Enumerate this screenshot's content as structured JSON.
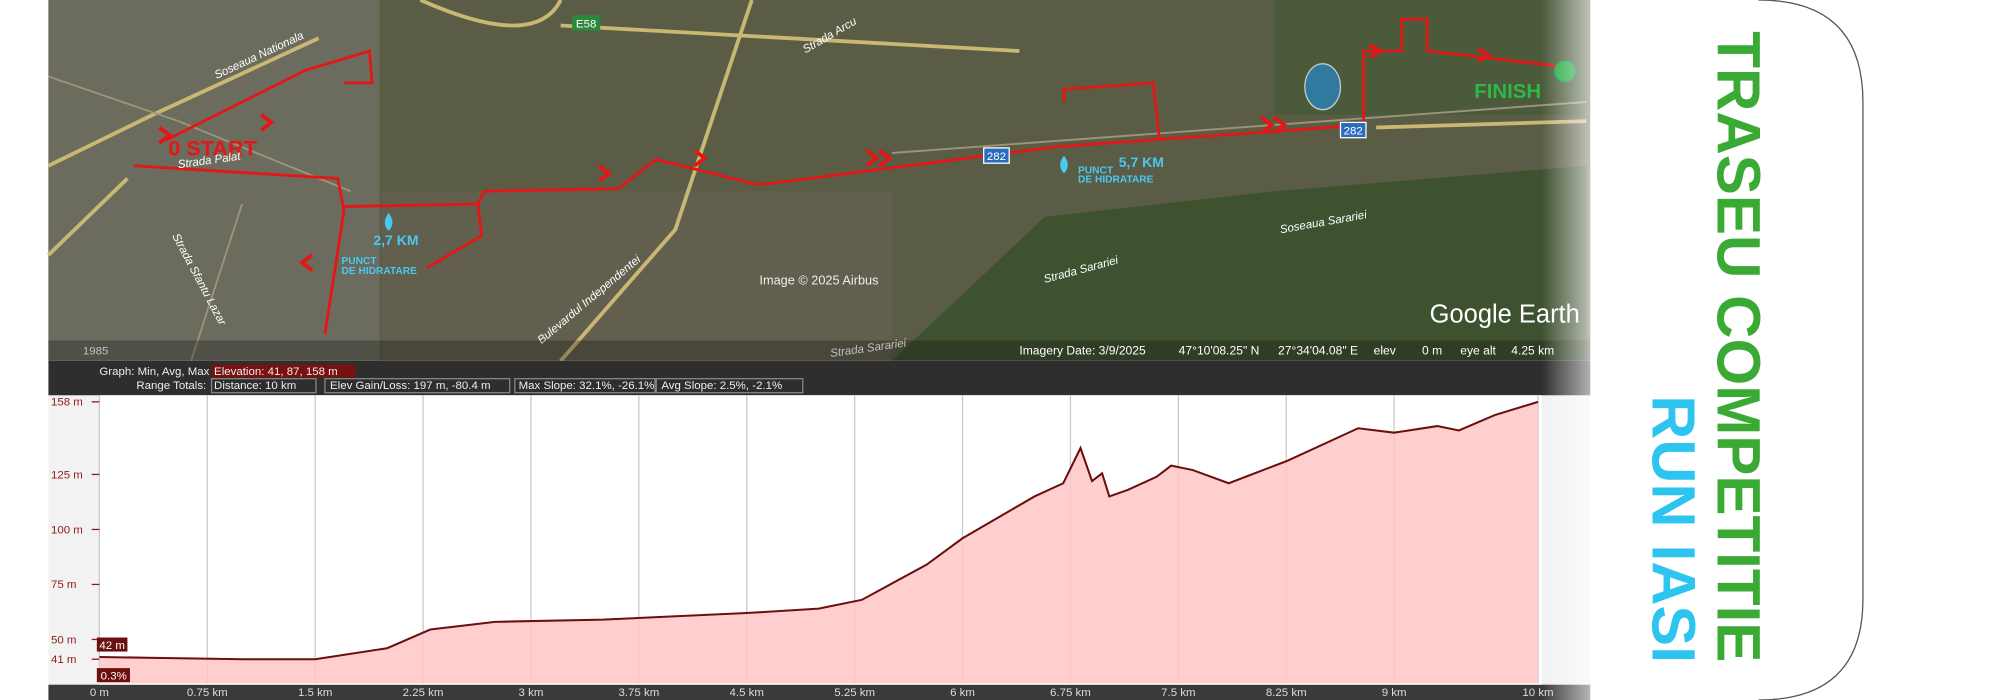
{
  "poster": {
    "title": "TRASEU COMPETITIE",
    "subtitle": "RUN IASI"
  },
  "map": {
    "start": "0 START",
    "finish": "FINISH",
    "hydration": [
      {
        "km": "2,7 KM",
        "lines": [
          "PUNCT",
          "DE HIDRATARE"
        ]
      },
      {
        "km": "5,7 KM",
        "lines": [
          "PUNCT",
          "DE HIDRATARE"
        ]
      }
    ],
    "streets": [
      "Soseaua Nationala",
      "Strada Palat",
      "Strada Sfantu Lazar",
      "Bulevardul Independentei",
      "Strada Sarariei",
      "Strada Sarariei",
      "Soseaua Sarariei",
      "Strada Arcu"
    ],
    "shields": [
      "E58",
      "282",
      "282"
    ],
    "attribution": "Image © 2025 Airbus",
    "brand": "Google Earth",
    "year": "1985",
    "status": [
      "Imagery Date: 3/9/2025",
      "47°10'08.25\" N",
      "27°34'04.08\" E",
      "elev",
      "0 m",
      "eye alt",
      "4.25 km"
    ]
  },
  "profile_header": {
    "graph_label": "Graph: Min, Avg, Max",
    "elevation": "Elevation: 41, 87, 158 m",
    "range_label": "Range Totals:",
    "distance": "Distance: 10 km",
    "gain_loss": "Elev Gain/Loss: 197 m, -80.4 m",
    "max_slope": "Max Slope: 32.1%, -26.1%",
    "avg_slope": "Avg Slope: 2.5%, -2.1%"
  },
  "chart_data": {
    "type": "area",
    "x": [
      0,
      0.5,
      1.0,
      1.5,
      2.0,
      2.3,
      2.75,
      3.5,
      4.5,
      5.0,
      5.3,
      5.75,
      6.0,
      6.5,
      6.7,
      6.82,
      6.9,
      6.97,
      7.02,
      7.15,
      7.35,
      7.45,
      7.6,
      7.85,
      8.25,
      8.75,
      9.0,
      9.3,
      9.45,
      9.7,
      10.0
    ],
    "values": [
      42,
      41.5,
      41,
      41,
      46,
      54.5,
      58,
      59,
      62,
      64,
      68,
      84,
      96,
      115,
      121,
      137,
      122,
      125.5,
      115,
      118,
      124,
      129,
      127,
      121,
      131,
      146,
      144,
      147,
      145,
      152,
      158
    ],
    "color": "#6b0f0f",
    "fill": "#ffc6c6",
    "xlim": [
      0,
      10
    ],
    "ylim": [
      30,
      161
    ],
    "xticks": [
      {
        "value": 0,
        "label": "0 m"
      },
      {
        "value": 0.75,
        "label": "0.75 km"
      },
      {
        "value": 1.5,
        "label": "1.5 km"
      },
      {
        "value": 2.25,
        "label": "2.25 km"
      },
      {
        "value": 3,
        "label": "3 km"
      },
      {
        "value": 3.75,
        "label": "3.75 km"
      },
      {
        "value": 4.5,
        "label": "4.5 km"
      },
      {
        "value": 5.25,
        "label": "5.25 km"
      },
      {
        "value": 6,
        "label": "6 km"
      },
      {
        "value": 6.75,
        "label": "6.75 km"
      },
      {
        "value": 7.5,
        "label": "7.5 km"
      },
      {
        "value": 8.25,
        "label": "8.25 km"
      },
      {
        "value": 9,
        "label": "9 km"
      },
      {
        "value": 10,
        "label": "10 km"
      }
    ],
    "yticks": [
      {
        "value": 41,
        "label": "41 m"
      },
      {
        "value": 50,
        "label": "50 m"
      },
      {
        "value": 75,
        "label": "75 m"
      },
      {
        "value": 100,
        "label": "100 m"
      },
      {
        "value": 125,
        "label": "125 m"
      },
      {
        "value": 158,
        "label": "158 m"
      }
    ],
    "grid": true,
    "annotations": [
      "42 m",
      "0.3%"
    ]
  }
}
